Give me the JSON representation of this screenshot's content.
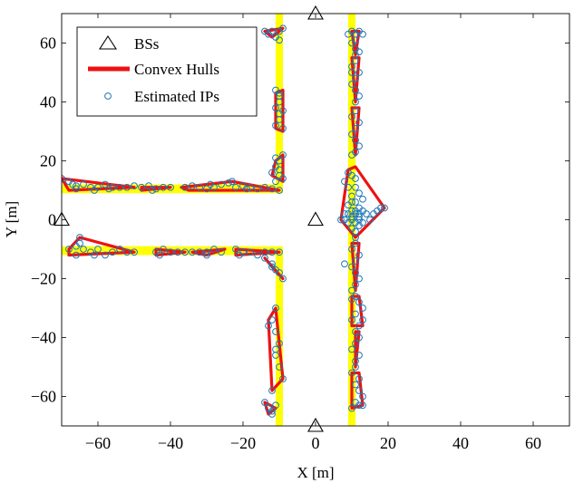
{
  "chart_data": {
    "type": "scatter",
    "xlabel": "X [m]",
    "ylabel": "Y [m]",
    "xlim": [
      -70,
      70
    ],
    "ylim": [
      -70,
      70
    ],
    "xticks": [
      -60,
      -40,
      -20,
      0,
      20,
      40,
      60
    ],
    "yticks": [
      -60,
      -40,
      -20,
      0,
      20,
      40,
      60
    ],
    "xtick_labels": [
      "−60",
      "−40",
      "−20",
      "0",
      "20",
      "40",
      "60"
    ],
    "ytick_labels": [
      "−60",
      "−40",
      "−20",
      "0",
      "20",
      "40",
      "60"
    ],
    "legend": {
      "position": "top-left",
      "entries": [
        {
          "label": "BSs",
          "marker": "triangle"
        },
        {
          "label": "Convex Hulls",
          "marker": "thick-line"
        },
        {
          "label": "Estimated IPs",
          "marker": "circle"
        }
      ]
    },
    "colors": {
      "road": "#ffff00",
      "hull": "#ee1111",
      "ip": "#1f77b4",
      "bs": "#000000"
    },
    "roads": [
      {
        "x": [
          -70,
          -10
        ],
        "y": [
          9,
          12
        ]
      },
      {
        "x": [
          -70,
          -10
        ],
        "y": [
          -12,
          -9
        ]
      },
      {
        "x": [
          -11,
          -9
        ],
        "y": [
          9,
          70
        ]
      },
      {
        "x": [
          -11,
          -9
        ],
        "y": [
          -70,
          -9
        ]
      },
      {
        "x": [
          9,
          11
        ],
        "y": [
          -70,
          70
        ]
      }
    ],
    "bs": [
      {
        "x": 0,
        "y": 70
      },
      {
        "x": -70,
        "y": 0
      },
      {
        "x": 0,
        "y": 0
      },
      {
        "x": 0,
        "y": -70
      }
    ],
    "hulls": [
      [
        [
          -70,
          14
        ],
        [
          -50,
          11
        ],
        [
          -68,
          10
        ]
      ],
      [
        [
          -48,
          11
        ],
        [
          -40,
          11
        ],
        [
          -48,
          10
        ]
      ],
      [
        [
          -37,
          11
        ],
        [
          -23,
          13
        ],
        [
          -10,
          10
        ],
        [
          -35,
          10
        ]
      ],
      [
        [
          -14,
          64
        ],
        [
          -9,
          65
        ],
        [
          -12,
          62
        ]
      ],
      [
        [
          -11,
          43
        ],
        [
          -9,
          44
        ],
        [
          -9,
          30
        ],
        [
          -11,
          31
        ]
      ],
      [
        [
          -11,
          20
        ],
        [
          -9,
          22
        ],
        [
          -9,
          13
        ],
        [
          -12,
          15
        ]
      ],
      [
        [
          10,
          64
        ],
        [
          12,
          64
        ],
        [
          11,
          56
        ]
      ],
      [
        [
          10,
          55
        ],
        [
          12,
          55
        ],
        [
          11,
          40
        ]
      ],
      [
        [
          10,
          38
        ],
        [
          12,
          38
        ],
        [
          11,
          22
        ]
      ],
      [
        [
          9,
          17
        ],
        [
          11,
          18
        ],
        [
          19,
          4
        ],
        [
          11,
          -6
        ],
        [
          7,
          0
        ]
      ],
      [
        [
          10,
          -8
        ],
        [
          12,
          -8
        ],
        [
          11,
          -24
        ]
      ],
      [
        [
          10,
          -26
        ],
        [
          12,
          -26
        ],
        [
          13,
          -36
        ],
        [
          10,
          -36
        ]
      ],
      [
        [
          11,
          -38
        ],
        [
          12,
          -38
        ],
        [
          11,
          -50
        ]
      ],
      [
        [
          10,
          -52
        ],
        [
          12,
          -52
        ],
        [
          13,
          -63
        ],
        [
          10,
          -64
        ]
      ],
      [
        [
          -68,
          -10
        ],
        [
          -65,
          -6
        ],
        [
          -50,
          -11
        ],
        [
          -68,
          -12
        ]
      ],
      [
        [
          -44,
          -10
        ],
        [
          -36,
          -11
        ],
        [
          -44,
          -12
        ]
      ],
      [
        [
          -34,
          -11
        ],
        [
          -25,
          -10
        ],
        [
          -30,
          -12
        ]
      ],
      [
        [
          -22,
          -10
        ],
        [
          -10,
          -11
        ],
        [
          -22,
          -12
        ]
      ],
      [
        [
          -14,
          -13
        ],
        [
          -9,
          -20
        ],
        [
          -12,
          -16
        ]
      ],
      [
        [
          -11,
          -30
        ],
        [
          -9,
          -54
        ],
        [
          -12,
          -58
        ],
        [
          -13,
          -34
        ]
      ],
      [
        [
          -14,
          -62
        ],
        [
          -11,
          -64
        ],
        [
          -13,
          -66
        ]
      ]
    ],
    "ips": [
      [
        -70,
        14
      ],
      [
        -68,
        13
      ],
      [
        -67,
        12
      ],
      [
        -66,
        11.5
      ],
      [
        -64,
        12
      ],
      [
        -62,
        11
      ],
      [
        -60,
        11
      ],
      [
        -58,
        12
      ],
      [
        -56,
        11
      ],
      [
        -54,
        11
      ],
      [
        -52,
        11
      ],
      [
        -50,
        11.5
      ],
      [
        -66,
        10.5
      ],
      [
        -61,
        10
      ],
      [
        -57,
        10.5
      ],
      [
        -48,
        11
      ],
      [
        -46,
        11.5
      ],
      [
        -44,
        10.5
      ],
      [
        -42,
        11
      ],
      [
        -40,
        11
      ],
      [
        -45,
        10
      ],
      [
        -36,
        11
      ],
      [
        -34,
        11.5
      ],
      [
        -32,
        11
      ],
      [
        -30,
        10.5
      ],
      [
        -28,
        11
      ],
      [
        -26,
        12
      ],
      [
        -24,
        12.5
      ],
      [
        -23,
        13
      ],
      [
        -22,
        11
      ],
      [
        -20,
        11.5
      ],
      [
        -18,
        11
      ],
      [
        -16,
        10.5
      ],
      [
        -14,
        11
      ],
      [
        -12,
        10.5
      ],
      [
        -10,
        10
      ],
      [
        -29,
        12
      ],
      [
        -19,
        10.5
      ],
      [
        -14,
        64
      ],
      [
        -13,
        63
      ],
      [
        -12,
        64
      ],
      [
        -11,
        62
      ],
      [
        -10,
        64
      ],
      [
        -9,
        65
      ],
      [
        -10,
        61
      ],
      [
        -11,
        44
      ],
      [
        -10,
        42
      ],
      [
        -10,
        40
      ],
      [
        -11,
        38
      ],
      [
        -10,
        36
      ],
      [
        -10,
        34
      ],
      [
        -11,
        32
      ],
      [
        -9,
        31
      ],
      [
        -10,
        43
      ],
      [
        -9,
        37
      ],
      [
        -11,
        21
      ],
      [
        -10,
        20
      ],
      [
        -11,
        18
      ],
      [
        -10,
        17
      ],
      [
        -12,
        16
      ],
      [
        -10,
        15
      ],
      [
        -9,
        14
      ],
      [
        -11,
        13
      ],
      [
        -9,
        22
      ],
      [
        10,
        64
      ],
      [
        11,
        63
      ],
      [
        12,
        64
      ],
      [
        11,
        61
      ],
      [
        10,
        60
      ],
      [
        11,
        58
      ],
      [
        12,
        57
      ],
      [
        11,
        56
      ],
      [
        13,
        63
      ],
      [
        9,
        63
      ],
      [
        11,
        54
      ],
      [
        10,
        52
      ],
      [
        12,
        50
      ],
      [
        11,
        48
      ],
      [
        10,
        46
      ],
      [
        11,
        44
      ],
      [
        12,
        42
      ],
      [
        11,
        40
      ],
      [
        10,
        50
      ],
      [
        11,
        37
      ],
      [
        10,
        35
      ],
      [
        12,
        33
      ],
      [
        11,
        31
      ],
      [
        10,
        29
      ],
      [
        11,
        27
      ],
      [
        12,
        25
      ],
      [
        11,
        23
      ],
      [
        10,
        22
      ],
      [
        9,
        16
      ],
      [
        10,
        15
      ],
      [
        8,
        13
      ],
      [
        11,
        14
      ],
      [
        9,
        11
      ],
      [
        11,
        11
      ],
      [
        12,
        9
      ],
      [
        10,
        8
      ],
      [
        13,
        7
      ],
      [
        11,
        6
      ],
      [
        9,
        5
      ],
      [
        12,
        4
      ],
      [
        10,
        3
      ],
      [
        11,
        2
      ],
      [
        12,
        1
      ],
      [
        10,
        0
      ],
      [
        11,
        -1
      ],
      [
        12,
        -2
      ],
      [
        10,
        -3
      ],
      [
        11,
        -4
      ],
      [
        11,
        -6
      ],
      [
        13,
        3
      ],
      [
        14,
        2
      ],
      [
        15,
        0
      ],
      [
        17,
        3
      ],
      [
        18,
        4
      ],
      [
        19,
        4
      ],
      [
        16,
        2
      ],
      [
        8,
        0
      ],
      [
        7,
        0
      ],
      [
        9,
        -1
      ],
      [
        12,
        2
      ],
      [
        11,
        3
      ],
      [
        10,
        1
      ],
      [
        9,
        2
      ],
      [
        12,
        0
      ],
      [
        13,
        -1
      ],
      [
        8,
        2
      ],
      [
        10,
        6
      ],
      [
        11,
        -8
      ],
      [
        10,
        -10
      ],
      [
        12,
        -12
      ],
      [
        11,
        -14
      ],
      [
        10,
        -16
      ],
      [
        11,
        -18
      ],
      [
        12,
        -20
      ],
      [
        11,
        -22
      ],
      [
        10,
        -24
      ],
      [
        8,
        -15
      ],
      [
        11,
        -26
      ],
      [
        12,
        -28
      ],
      [
        13,
        -30
      ],
      [
        11,
        -32
      ],
      [
        10,
        -34
      ],
      [
        12,
        -36
      ],
      [
        13,
        -34
      ],
      [
        10,
        -27
      ],
      [
        11,
        -38
      ],
      [
        12,
        -40
      ],
      [
        11,
        -42
      ],
      [
        10,
        -44
      ],
      [
        12,
        -46
      ],
      [
        11,
        -48
      ],
      [
        11,
        -50
      ],
      [
        10,
        -52
      ],
      [
        12,
        -54
      ],
      [
        11,
        -56
      ],
      [
        12,
        -58
      ],
      [
        13,
        -60
      ],
      [
        11,
        -62
      ],
      [
        10,
        -64
      ],
      [
        12,
        -63
      ],
      [
        13,
        -63
      ],
      [
        -68,
        -10
      ],
      [
        -66,
        -9
      ],
      [
        -65,
        -8
      ],
      [
        -64,
        -10
      ],
      [
        -62,
        -11
      ],
      [
        -60,
        -10
      ],
      [
        -58,
        -12
      ],
      [
        -56,
        -11
      ],
      [
        -54,
        -10
      ],
      [
        -52,
        -11
      ],
      [
        -50,
        -11
      ],
      [
        -65,
        -6
      ],
      [
        -66,
        -12
      ],
      [
        -61,
        -12
      ],
      [
        -44,
        -11
      ],
      [
        -42,
        -10
      ],
      [
        -40,
        -11
      ],
      [
        -38,
        -11
      ],
      [
        -36,
        -11
      ],
      [
        -43,
        -12
      ],
      [
        -34,
        -11
      ],
      [
        -32,
        -11
      ],
      [
        -30,
        -11
      ],
      [
        -28,
        -10
      ],
      [
        -26,
        -11
      ],
      [
        -30,
        -12
      ],
      [
        -22,
        -10
      ],
      [
        -20,
        -11
      ],
      [
        -18,
        -11
      ],
      [
        -16,
        -12
      ],
      [
        -14,
        -11
      ],
      [
        -12,
        -11
      ],
      [
        -10,
        -11
      ],
      [
        -21,
        -12
      ],
      [
        -14,
        -13
      ],
      [
        -12,
        -15
      ],
      [
        -11,
        -17
      ],
      [
        -10,
        -18
      ],
      [
        -9,
        -20
      ],
      [
        -12,
        -16
      ],
      [
        -11,
        -30
      ],
      [
        -12,
        -34
      ],
      [
        -11,
        -38
      ],
      [
        -10,
        -42
      ],
      [
        -11,
        -46
      ],
      [
        -10,
        -50
      ],
      [
        -9,
        -54
      ],
      [
        -12,
        -58
      ],
      [
        -13,
        -36
      ],
      [
        -11,
        -44
      ],
      [
        -14,
        -62
      ],
      [
        -13,
        -64
      ],
      [
        -12,
        -65
      ],
      [
        -11,
        -63
      ],
      [
        -12,
        -66
      ]
    ]
  }
}
